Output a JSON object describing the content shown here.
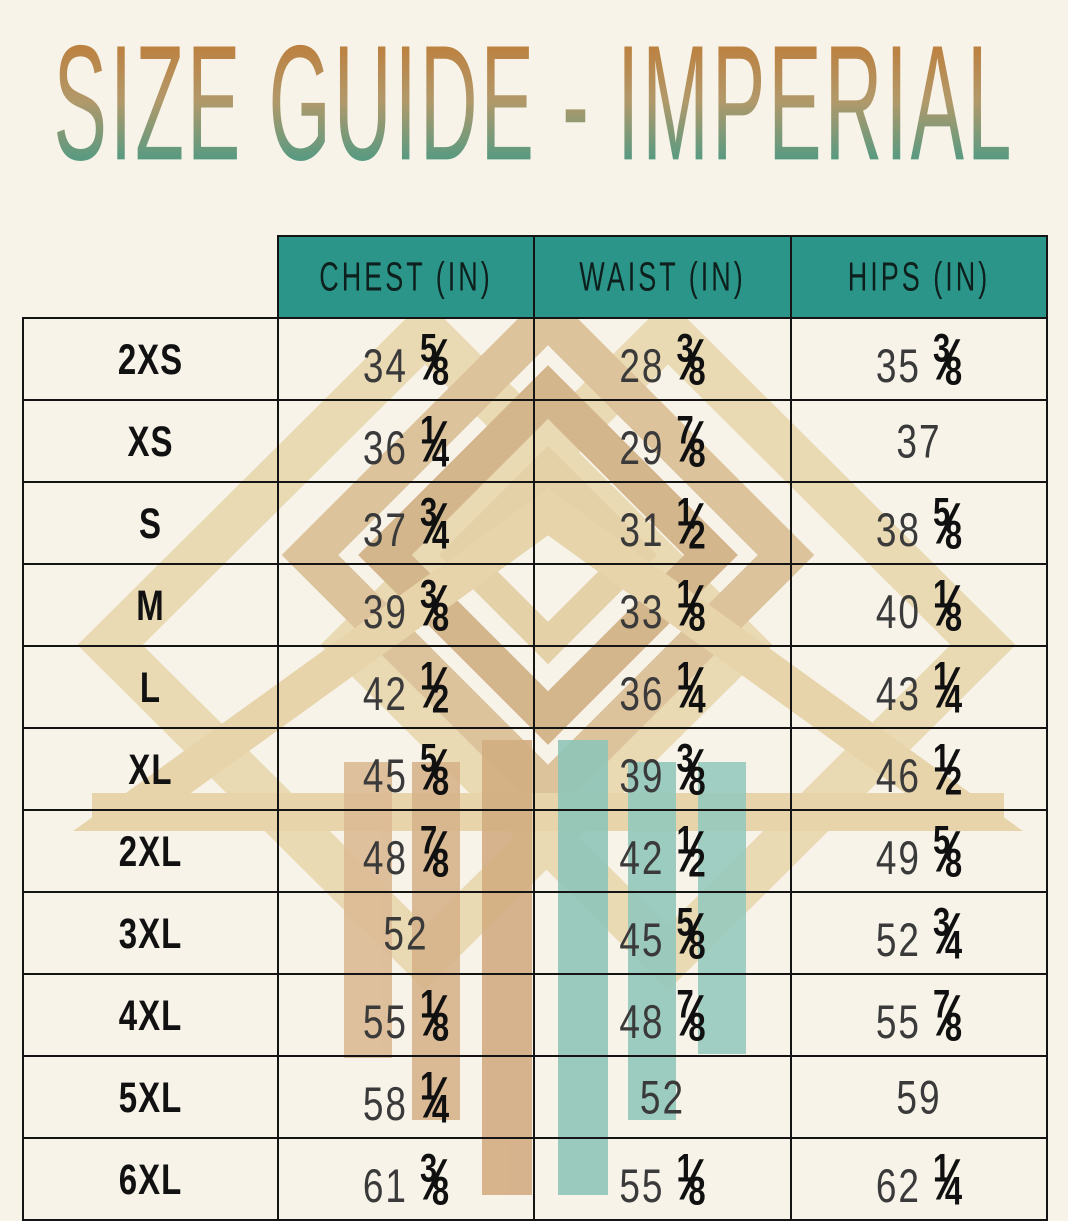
{
  "title": "SIZE GUIDE - IMPERIAL",
  "colors": {
    "background": "#f7f3e9",
    "header_teal": "#2b9589",
    "border": "#141414",
    "title_gradient_top": "#c1762d",
    "title_gradient_bottom": "#2f9a8c",
    "watermark_tan_light": "#e9d7ad",
    "watermark_tan_mid": "#d9bd92",
    "watermark_tan_dark": "#d3ad82",
    "watermark_teal_bar": "#8fc6b9",
    "text": "#1c1c1c"
  },
  "chart_data": {
    "type": "table",
    "title": "SIZE GUIDE - IMPERIAL",
    "columns": [
      "",
      "CHEST (IN)",
      "WAIST (IN)",
      "HIPS (IN)"
    ],
    "rows": [
      [
        "2XS",
        "34 5/8",
        "28 3/8",
        "35 3/8"
      ],
      [
        "XS",
        "36 1/4",
        "29 7/8",
        "37"
      ],
      [
        "S",
        "37 3/4",
        "31 1/2",
        "38 5/8"
      ],
      [
        "M",
        "39 3/8",
        "33 1/8",
        "40 1/8"
      ],
      [
        "L",
        "42 1/2",
        "36 1/4",
        "43 1/4"
      ],
      [
        "XL",
        "45 5/8",
        "39 3/8",
        "46 1/2"
      ],
      [
        "2XL",
        "48 7/8",
        "42 1/2",
        "49 5/8"
      ],
      [
        "3XL",
        "52",
        "45 5/8",
        "52 3/4"
      ],
      [
        "4XL",
        "55 1/8",
        "48 7/8",
        "55 7/8"
      ],
      [
        "5XL",
        "58 1/4",
        "52",
        "59"
      ],
      [
        "6XL",
        "61 3/8",
        "55 1/8",
        "62 1/4"
      ]
    ]
  }
}
